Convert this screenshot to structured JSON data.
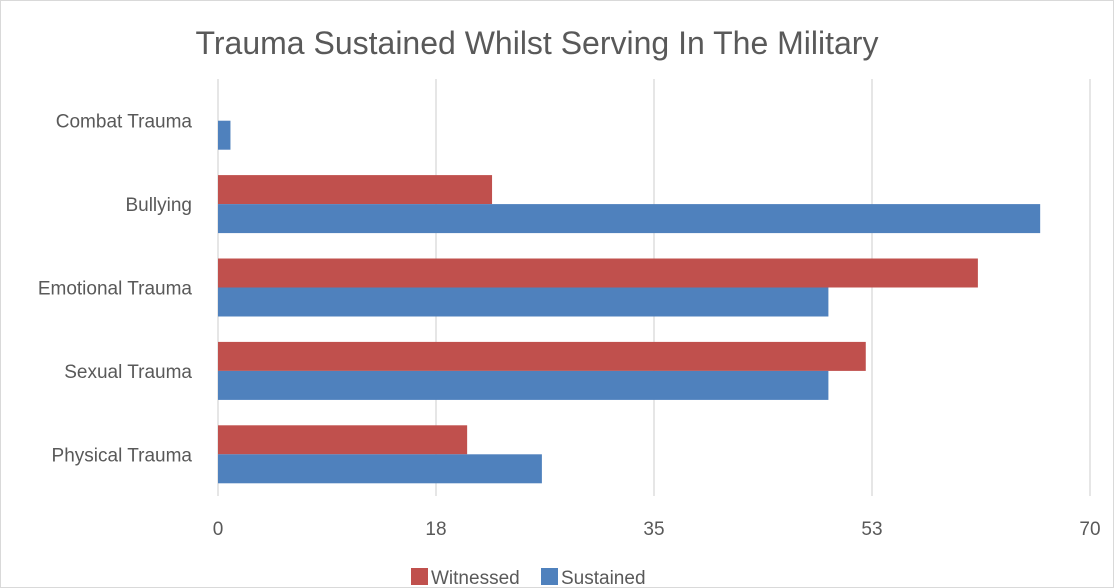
{
  "chart_data": {
    "type": "bar",
    "orientation": "horizontal",
    "title": "Trauma Sustained Whilst Serving  In The Military",
    "xlabel": "",
    "ylabel": "",
    "categories": [
      "Combat Trauma",
      "Bullying",
      "Emotional Trauma",
      "Sexual Trauma",
      "Physical Trauma"
    ],
    "series": [
      {
        "name": "Witnessed",
        "color": "#c0504d",
        "values": [
          0,
          22,
          61,
          52,
          20
        ]
      },
      {
        "name": "Sustained",
        "color": "#4f81bd",
        "values": [
          1,
          66,
          49,
          49,
          26
        ]
      }
    ],
    "xlim": [
      0,
      70
    ],
    "ticks": [
      "0",
      "18",
      "35",
      "53",
      "70"
    ],
    "tick_values": [
      0,
      17.5,
      35,
      52.5,
      70
    ],
    "grid": true,
    "legend": "bottom"
  }
}
